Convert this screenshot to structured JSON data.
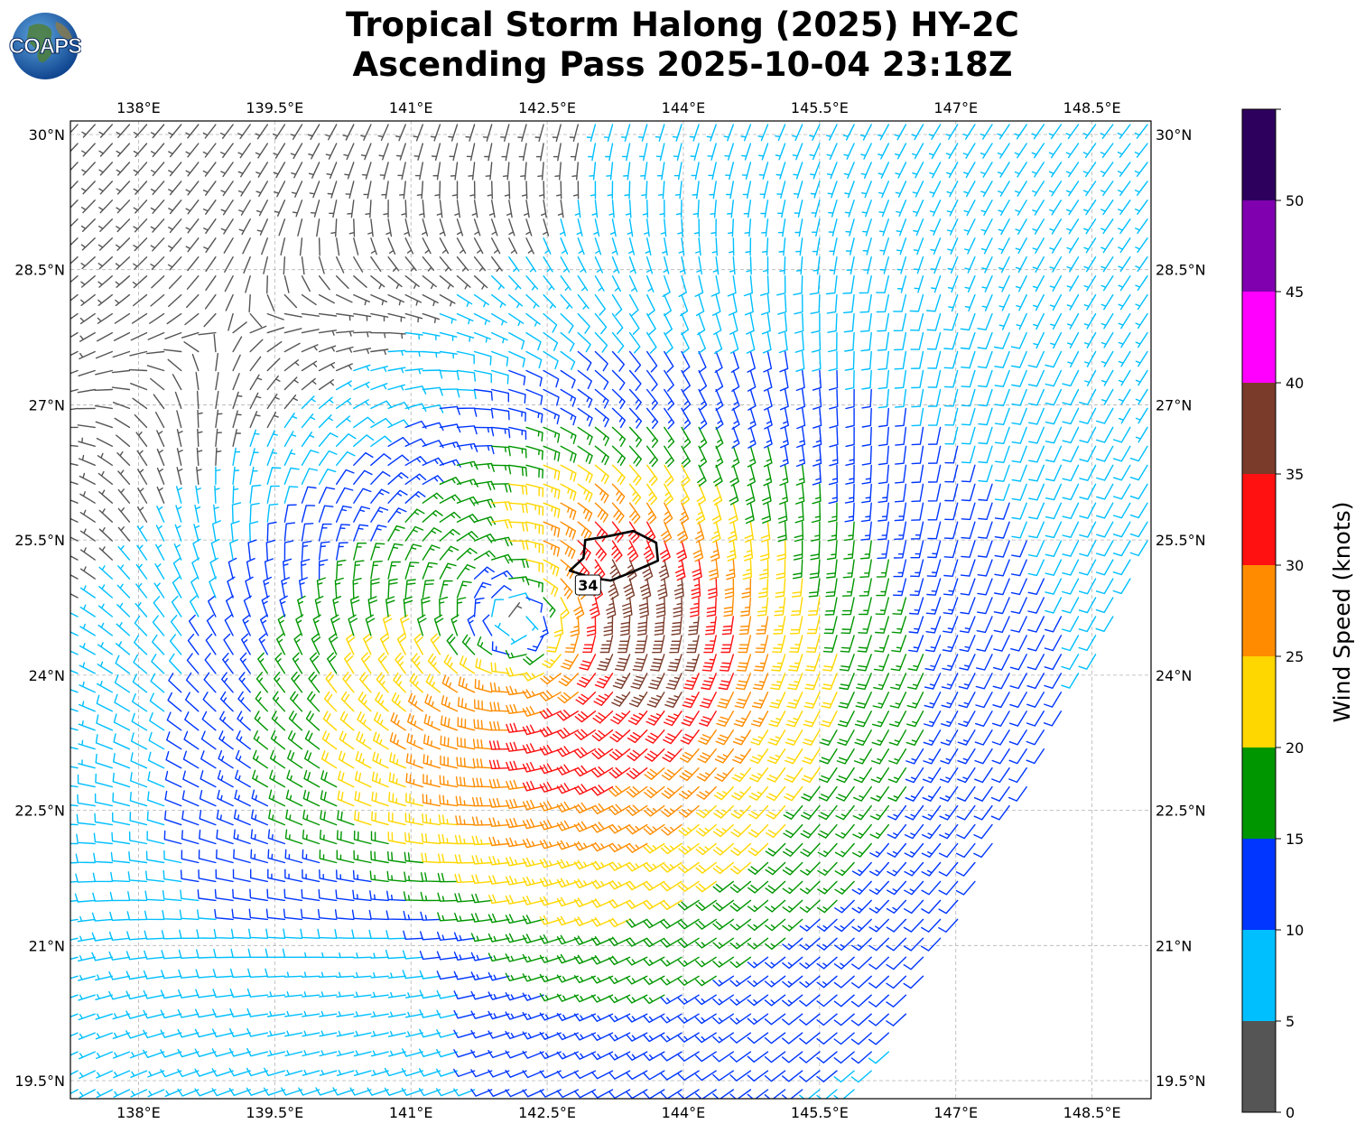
{
  "header": {
    "title_line1": "Tropical Storm Halong (2025) HY-2C",
    "title_line2": "Ascending Pass 2025-10-04 23:18Z",
    "logo_text": "COAPS",
    "logo_icon": "globe-icon"
  },
  "chart_data": {
    "type": "wind-barb-map",
    "projection": "lon-lat",
    "xlim": [
      137.25,
      149.15
    ],
    "ylim": [
      19.3,
      30.15
    ],
    "x_ticks": [
      138,
      139.5,
      141,
      142.5,
      144,
      145.5,
      147,
      148.5
    ],
    "x_tick_labels": [
      "138°E",
      "139.5°E",
      "141°E",
      "142.5°E",
      "144°E",
      "145.5°E",
      "147°E",
      "148.5°E"
    ],
    "y_ticks": [
      19.5,
      21,
      22.5,
      24,
      25.5,
      27,
      28.5,
      30
    ],
    "y_tick_labels": [
      "19.5°N",
      "21°N",
      "22.5°N",
      "24°N",
      "25.5°N",
      "27°N",
      "28.5°N",
      "30°N"
    ],
    "grid": true,
    "storm_center": {
      "lon": 142.3,
      "lat": 24.4
    },
    "wind_field": "cyclonic; wind speed in knots (≈9 kt near 140.6°E 20.5°N rising to ≈33 kt north-east of the centre)",
    "swath_edge": [
      [
        146.0,
        19.3
      ],
      [
        149.15,
        25.4
      ]
    ],
    "contour": {
      "level": 34,
      "label": "34",
      "points": [
        [
          143.16,
          25.54
        ],
        [
          143.45,
          25.6
        ],
        [
          143.7,
          25.47
        ],
        [
          143.72,
          25.27
        ],
        [
          143.45,
          25.15
        ],
        [
          143.2,
          25.05
        ],
        [
          143.0,
          25.08
        ],
        [
          142.75,
          25.16
        ],
        [
          142.9,
          25.3
        ],
        [
          142.92,
          25.5
        ]
      ]
    },
    "colorbar": {
      "label": "Wind Speed (knots)",
      "min": 0,
      "max": 55,
      "ticks": [
        0,
        5,
        10,
        15,
        20,
        25,
        30,
        35,
        40,
        45,
        50
      ],
      "bins": [
        {
          "from": 0,
          "to": 5,
          "color": "#555555"
        },
        {
          "from": 5,
          "to": 10,
          "color": "#00bfff"
        },
        {
          "from": 10,
          "to": 15,
          "color": "#0036ff"
        },
        {
          "from": 15,
          "to": 20,
          "color": "#009600"
        },
        {
          "from": 20,
          "to": 25,
          "color": "#ffd700"
        },
        {
          "from": 25,
          "to": 30,
          "color": "#ff8c00"
        },
        {
          "from": 30,
          "to": 35,
          "color": "#ff1111"
        },
        {
          "from": 35,
          "to": 40,
          "color": "#7b3b2a"
        },
        {
          "from": 40,
          "to": 45,
          "color": "#ff00ff"
        },
        {
          "from": 45,
          "to": 50,
          "color": "#8000b0"
        },
        {
          "from": 50,
          "to": 55,
          "color": "#2e005e"
        }
      ]
    }
  }
}
